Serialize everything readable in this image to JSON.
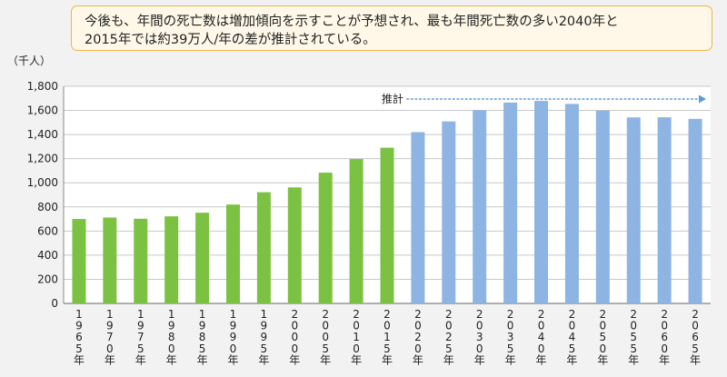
{
  "note": {
    "line1": "今後も、年間の死亡数は増加傾向を示すことが予想され、最も年間死亡数の多い2040年と",
    "line2": "2015年では約39万人/年の差が推計されている。"
  },
  "unit_label": "（千人）",
  "colors": {
    "actual": "#7cc242",
    "projected": "#8db4e2",
    "arrow": "#5b9bd5"
  },
  "chart_data": {
    "type": "bar",
    "title": "",
    "xlabel": "",
    "ylabel": "（千人）",
    "ylim": [
      0,
      1800
    ],
    "yticks": [
      0,
      200,
      400,
      600,
      800,
      1000,
      1200,
      1400,
      1600,
      1800
    ],
    "ytick_labels": [
      "0",
      "200",
      "400",
      "600",
      "800",
      "1,000",
      "1,200",
      "1,400",
      "1,600",
      "1,800"
    ],
    "grid": true,
    "categories": [
      "1965年",
      "1970年",
      "1975年",
      "1980年",
      "1985年",
      "1990年",
      "1995年",
      "2000年",
      "2005年",
      "2010年",
      "2015年",
      "2020年",
      "2025年",
      "2030年",
      "2035年",
      "2040年",
      "2045年",
      "2050年",
      "2055年",
      "2060年",
      "2065年"
    ],
    "values": [
      700,
      712,
      702,
      722,
      752,
      820,
      922,
      962,
      1084,
      1197,
      1291,
      1420,
      1509,
      1602,
      1665,
      1679,
      1654,
      1599,
      1542,
      1543,
      1530
    ],
    "projected_from_index": 11,
    "annotation": "推計"
  }
}
